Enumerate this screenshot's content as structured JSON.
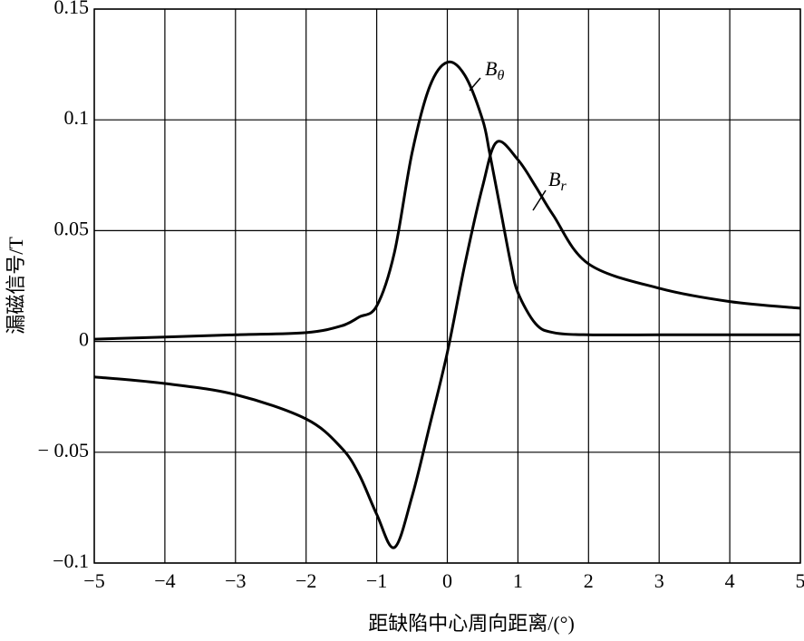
{
  "chart_data": {
    "type": "line",
    "xlabel": "距缺陷中心周向距离/(°)",
    "ylabel": "漏磁信号/T",
    "xlim": [
      -5,
      5
    ],
    "xticks": [
      {
        "value": -5,
        "label": "−5"
      },
      {
        "value": -4,
        "label": "−4"
      },
      {
        "value": -3,
        "label": "−3"
      },
      {
        "value": -2,
        "label": "−2"
      },
      {
        "value": -1,
        "label": "−1"
      },
      0,
      1,
      2,
      3,
      4,
      5
    ],
    "ylim": [
      -0.1,
      0.15
    ],
    "yticks": [
      {
        "value": -0.1,
        "label": "−0.1"
      },
      {
        "value": -0.05,
        "label": "− 0.05"
      },
      0,
      0.05,
      0.1,
      0.15
    ],
    "grid": true,
    "series": [
      {
        "name": "Bθ",
        "color": "#000000",
        "x": [
          -5,
          -4,
          -3,
          -2,
          -1.5,
          -1.25,
          -1,
          -0.75,
          -0.5,
          -0.25,
          0,
          0.25,
          0.5,
          0.6,
          0.75,
          0.9,
          1,
          1.25,
          1.5,
          2,
          3,
          4,
          5
        ],
        "values": [
          0.001,
          0.002,
          0.003,
          0.004,
          0.007,
          0.011,
          0.016,
          0.04,
          0.085,
          0.115,
          0.126,
          0.12,
          0.1,
          0.085,
          0.06,
          0.035,
          0.022,
          0.008,
          0.004,
          0.003,
          0.003,
          0.003,
          0.003
        ]
      },
      {
        "name": "Br",
        "color": "#000000",
        "x": [
          -5,
          -4,
          -3,
          -2,
          -1.5,
          -1.25,
          -1,
          -0.75,
          -0.5,
          -0.25,
          0,
          0.25,
          0.5,
          0.7,
          1,
          1.25,
          1.5,
          2,
          3,
          4,
          5
        ],
        "values": [
          -0.016,
          -0.019,
          -0.024,
          -0.035,
          -0.048,
          -0.06,
          -0.078,
          -0.093,
          -0.07,
          -0.038,
          -0.005,
          0.035,
          0.07,
          0.09,
          0.082,
          0.07,
          0.057,
          0.035,
          0.024,
          0.018,
          0.015
        ]
      }
    ]
  }
}
